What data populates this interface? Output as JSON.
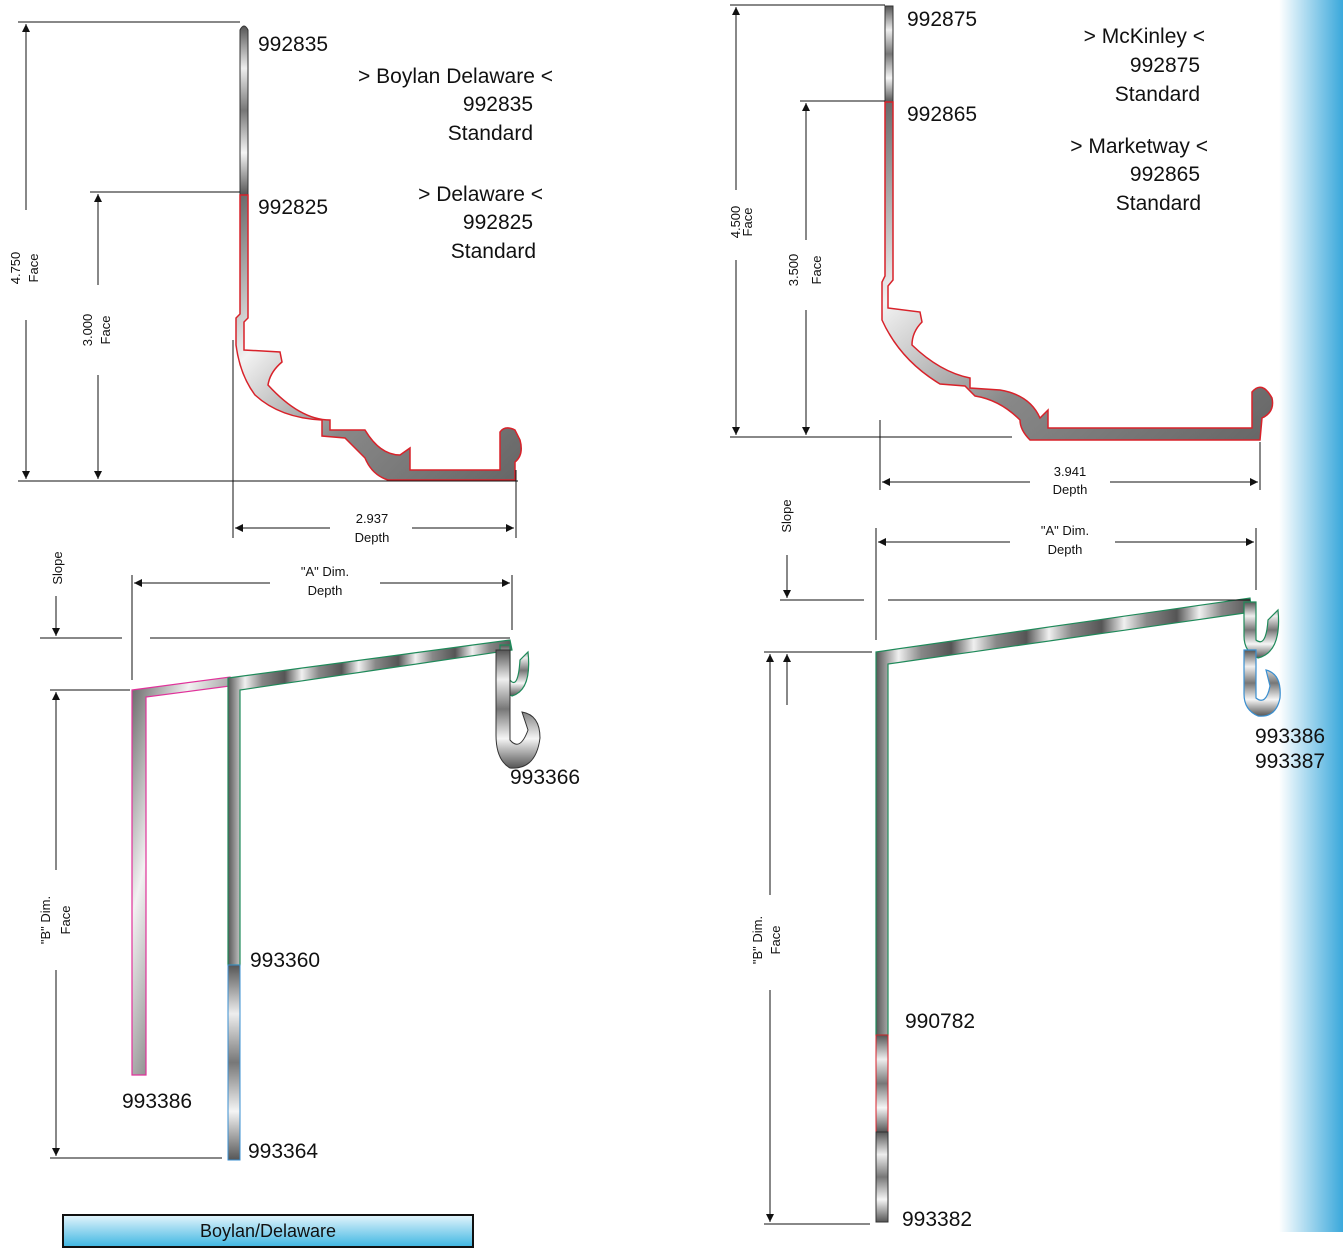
{
  "colors": {
    "red_outline": "#d8222a",
    "green_outline": "#1f8a5a",
    "blue_outline": "#3a8fd0",
    "magenta_outline": "#e0329a",
    "sidebar_light": "#ffffff",
    "sidebar_dark": "#3aa8db"
  },
  "top_left": {
    "parts": {
      "upper": "992835",
      "lower": "992825"
    },
    "descriptions": {
      "a_name": "> Boylan Delaware <",
      "a_part": "992835",
      "a_grade": "Standard",
      "b_name": "> Delaware <",
      "b_part": "992825",
      "b_grade": "Standard"
    },
    "dims": {
      "face_total_value": "4.750",
      "face_total_label": "Face",
      "face_partial_value": "3.000",
      "face_partial_label": "Face",
      "depth_value": "2.937",
      "depth_label": "Depth"
    }
  },
  "top_right": {
    "parts": {
      "upper": "992875",
      "lower": "992865"
    },
    "descriptions": {
      "a_name": "> McKinley <",
      "a_part": "992875",
      "a_grade": "Standard",
      "b_name": "> Marketway <",
      "b_part": "992865",
      "b_grade": "Standard"
    },
    "dims": {
      "face_total_value": "4.500",
      "face_total_label": "Face",
      "face_partial_value": "3.500",
      "face_partial_label": "Face",
      "depth_value": "3.941",
      "depth_label": "Depth"
    }
  },
  "bottom_left": {
    "slope_label": "Slope",
    "a_dim_line1": "\"A\" Dim.",
    "a_dim_line2": "Depth",
    "b_dim_line1": "\"B\" Dim.",
    "b_dim_line2": "Face",
    "parts": {
      "hook": "993366",
      "mid": "993360",
      "outer": "993386",
      "bottom": "993364"
    }
  },
  "bottom_right": {
    "slope_label": "Slope",
    "a_dim_line1": "\"A\" Dim.",
    "a_dim_line2": "Depth",
    "b_dim_line1": "\"B\" Dim.",
    "b_dim_line2": "Face",
    "parts": {
      "hook_a": "993386",
      "hook_b": "993387",
      "mid": "990782",
      "bottom": "993382"
    }
  },
  "footer": {
    "title": "Boylan/Delaware"
  }
}
